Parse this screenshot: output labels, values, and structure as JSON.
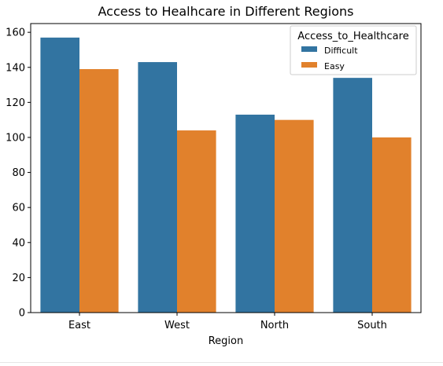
{
  "chart_data": {
    "type": "bar",
    "title": "Access to Healhcare in Different Regions",
    "xlabel": "Region",
    "ylabel": "",
    "categories": [
      "East",
      "West",
      "North",
      "South"
    ],
    "series": [
      {
        "name": "Difficult",
        "color": "#3274a1",
        "values": [
          157,
          143,
          113,
          134
        ]
      },
      {
        "name": "Easy",
        "color": "#e1812c",
        "values": [
          139,
          104,
          110,
          100
        ]
      }
    ],
    "ylim": [
      0,
      165
    ],
    "yticks": [
      0,
      20,
      40,
      60,
      80,
      100,
      120,
      140,
      160
    ],
    "legend": {
      "title": "Access_to_Healthcare",
      "placement": "top-right"
    },
    "grid": false
  }
}
